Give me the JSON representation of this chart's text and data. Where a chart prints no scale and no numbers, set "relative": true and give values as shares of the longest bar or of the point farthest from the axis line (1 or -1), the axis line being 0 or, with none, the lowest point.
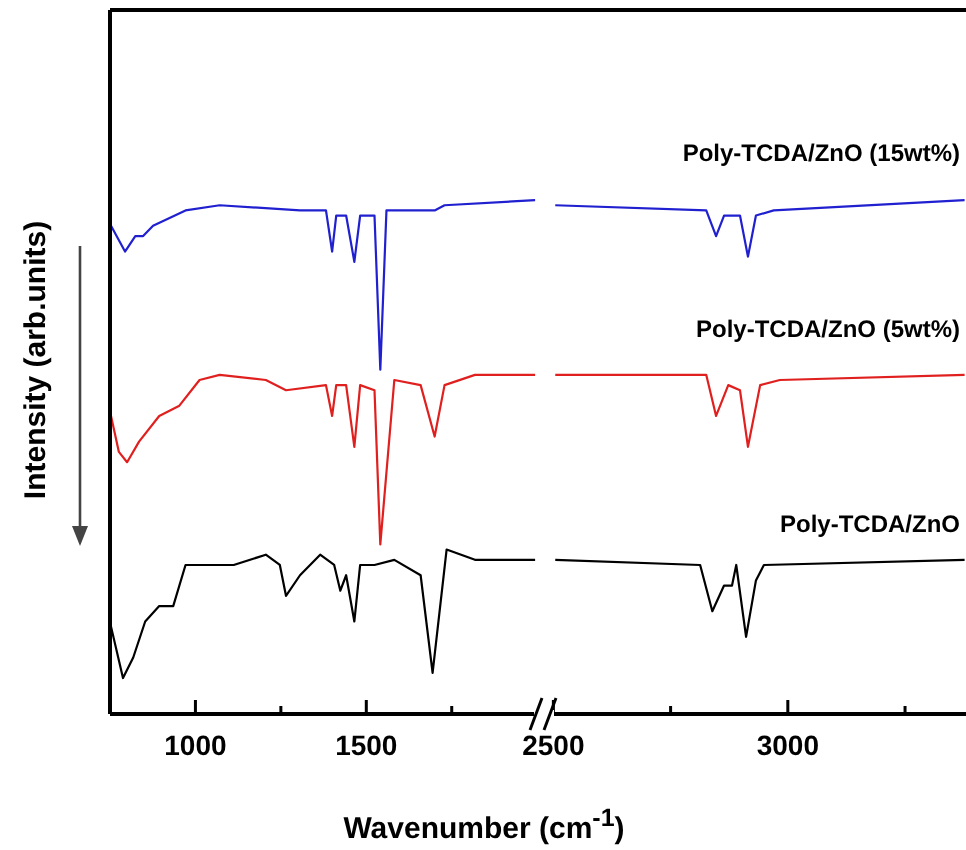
{
  "chart_data": [
    {
      "type": "line",
      "relative": true,
      "ylabel": "Intensity (arb.units)",
      "xlabel": "Wavenumber (cm$^{-1}$)",
      "xlim": [
        750,
        2020
      ],
      "xticks": [
        1000,
        {
          "value": 1250,
          "label": null
        },
        1500,
        {
          "value": 1750,
          "label": null
        }
      ],
      "series": [
        {
          "color": "#2020d0",
          "x": [
            753,
            794,
            824,
            847,
            876,
            971,
            1071,
            1306,
            1382,
            1400,
            1412,
            1441,
            1465,
            1482,
            1524,
            1541,
            1559,
            1700,
            1729,
            1994
          ],
          "values": [
            0.95,
            0.9,
            0.93,
            0.93,
            0.95,
            0.98,
            0.99,
            0.98,
            0.98,
            0.9,
            0.97,
            0.97,
            0.88,
            0.97,
            0.97,
            0.67,
            0.98,
            0.98,
            0.99,
            1.0
          ]
        },
        {
          "color": "#e0201f",
          "x": [
            753,
            776,
            800,
            835,
            894,
            953,
            1012,
            1071,
            1206,
            1265,
            1382,
            1400,
            1412,
            1441,
            1465,
            1482,
            1524,
            1541,
            1582,
            1659,
            1700,
            1729,
            1818,
            1994
          ],
          "values": [
            0.58,
            0.51,
            0.49,
            0.53,
            0.58,
            0.6,
            0.65,
            0.66,
            0.65,
            0.63,
            0.64,
            0.58,
            0.64,
            0.64,
            0.52,
            0.64,
            0.63,
            0.33,
            0.65,
            0.64,
            0.54,
            0.64,
            0.66,
            0.66
          ]
        },
        {
          "color": "#000000",
          "x": [
            753,
            788,
            818,
            853,
            894,
            935,
            971,
            1112,
            1206,
            1247,
            1265,
            1306,
            1365,
            1406,
            1424,
            1441,
            1465,
            1482,
            1524,
            1582,
            1659,
            1694,
            1735,
            1818,
            1994
          ],
          "values": [
            0.17,
            0.07,
            0.11,
            0.18,
            0.21,
            0.21,
            0.29,
            0.29,
            0.31,
            0.29,
            0.23,
            0.27,
            0.31,
            0.29,
            0.24,
            0.27,
            0.18,
            0.29,
            0.29,
            0.3,
            0.27,
            0.08,
            0.32,
            0.3,
            0.3
          ]
        }
      ]
    },
    {
      "type": "line",
      "relative": true,
      "tick_labels": "x",
      "xlim": [
        2480,
        3380
      ],
      "xticks": [
        2500,
        {
          "value": 2750,
          "label": null
        },
        3000,
        {
          "value": 3250,
          "label": null
        }
      ],
      "series": [
        {
          "name": "Poly-TCDA/ZnO (15wt%)",
          "color": "#2020d0",
          "x": [
            2504,
            2826,
            2847,
            2864,
            2898,
            2915,
            2932,
            2970,
            3377
          ],
          "values": [
            0.99,
            0.98,
            0.93,
            0.97,
            0.97,
            0.89,
            0.97,
            0.98,
            1.0
          ]
        },
        {
          "name": "Poly-TCDA/ZnO (5wt%)",
          "color": "#e0201f",
          "x": [
            2504,
            2826,
            2847,
            2873,
            2898,
            2915,
            2941,
            2983,
            3377
          ],
          "values": [
            0.66,
            0.66,
            0.58,
            0.64,
            0.63,
            0.52,
            0.64,
            0.65,
            0.66
          ]
        },
        {
          "name": "Poly-TCDA/ZnO",
          "color": "#000000",
          "x": [
            2504,
            2813,
            2839,
            2864,
            2881,
            2890,
            2911,
            2932,
            2949,
            3377
          ],
          "values": [
            0.3,
            0.29,
            0.2,
            0.25,
            0.25,
            0.29,
            0.15,
            0.26,
            0.29,
            0.3
          ]
        }
      ]
    }
  ]
}
